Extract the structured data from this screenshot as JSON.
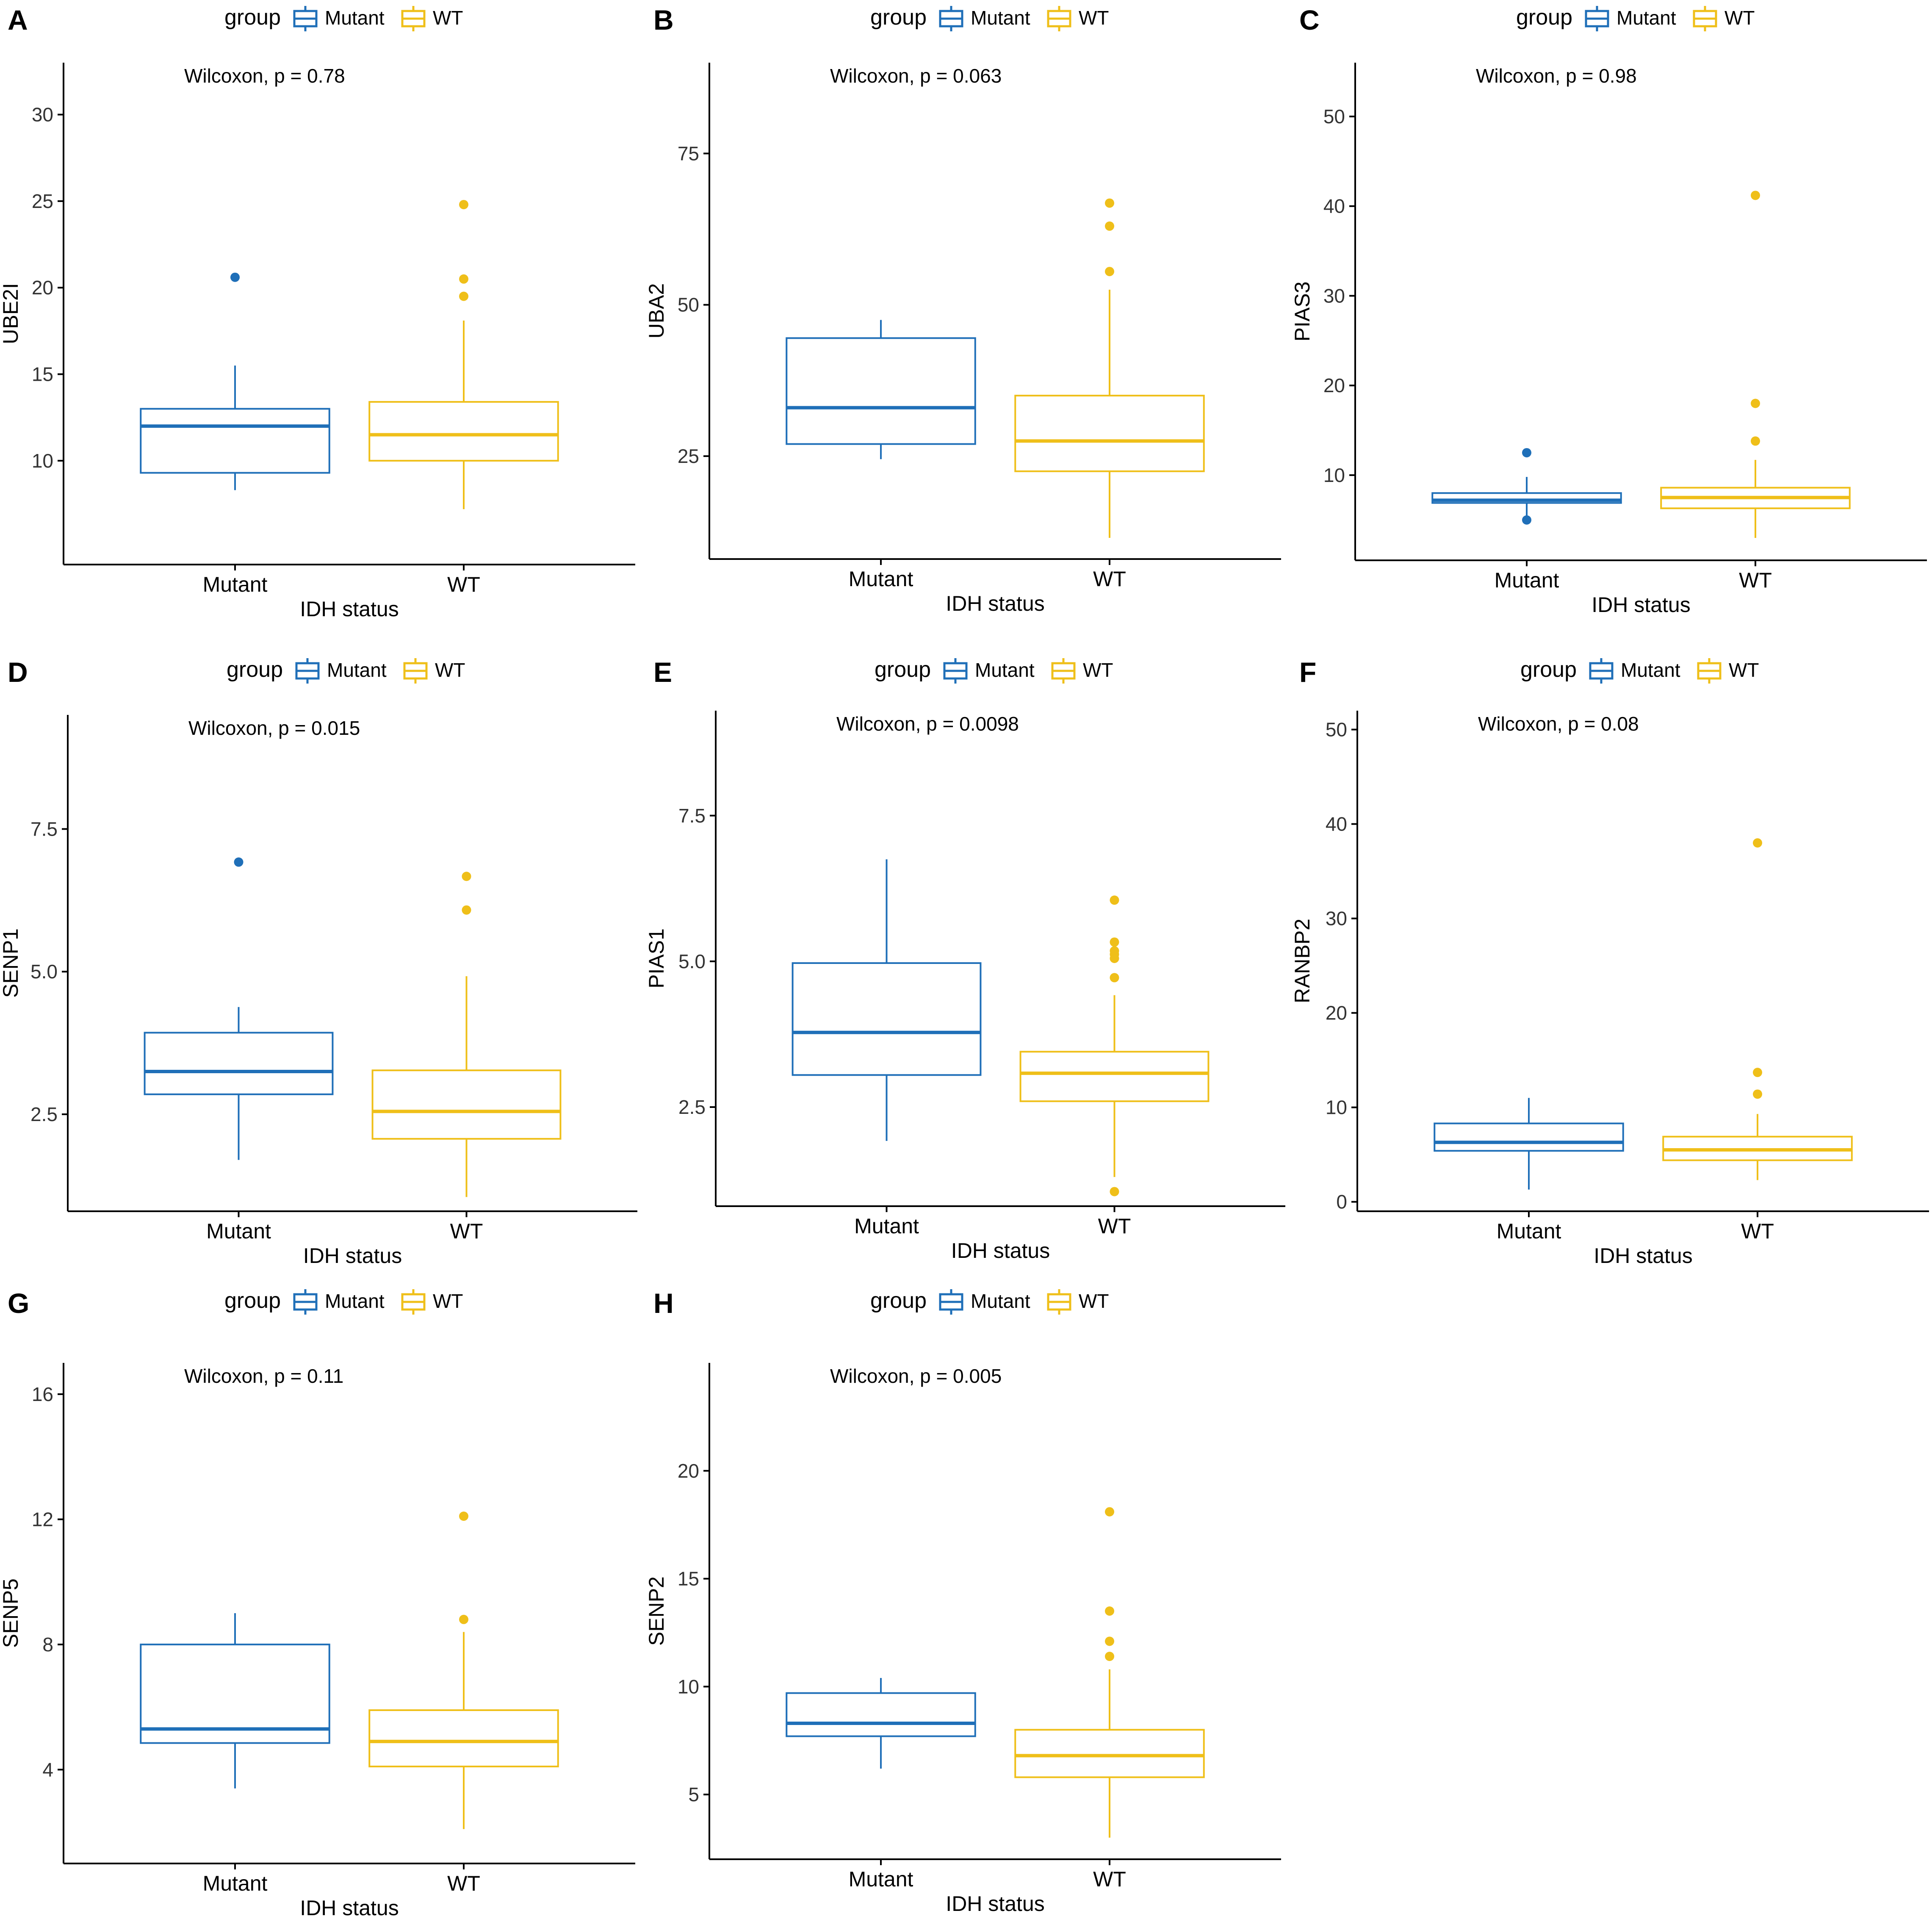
{
  "colors": {
    "mutant": "#1f6fb8",
    "wt": "#efbf19",
    "axis": "#000000",
    "text": "#000000"
  },
  "legend": {
    "title": "group",
    "mutant_label": "Mutant",
    "wt_label": "WT"
  },
  "chart_data": [
    {
      "panel": "A",
      "type": "box",
      "xlabel": "IDH status",
      "ylabel": "UBE2I",
      "annotation": "Wilcoxon, p = 0.78",
      "categories": [
        "Mutant",
        "WT"
      ],
      "ylim": [
        4,
        33
      ],
      "yticks": [
        10,
        15,
        20,
        25,
        30
      ],
      "ytick_labels": [
        "10",
        "15",
        "20",
        "25",
        "30"
      ],
      "boxes": [
        {
          "group": "Mutant",
          "whislo": 8.3,
          "q1": 9.3,
          "med": 12.0,
          "q3": 13.0,
          "whishi": 15.5,
          "outliers": [
            20.6
          ]
        },
        {
          "group": "WT",
          "whislo": 7.2,
          "q1": 10.0,
          "med": 11.5,
          "q3": 13.4,
          "whishi": 18.1,
          "outliers": [
            19.5,
            20.5,
            24.8
          ]
        }
      ]
    },
    {
      "panel": "B",
      "type": "box",
      "xlabel": "IDH status",
      "ylabel": "UBA2",
      "annotation": "Wilcoxon, p = 0.063",
      "categories": [
        "Mutant",
        "WT"
      ],
      "ylim": [
        8,
        90
      ],
      "yticks": [
        25,
        50,
        75
      ],
      "ytick_labels": [
        "25",
        "50",
        "75"
      ],
      "boxes": [
        {
          "group": "Mutant",
          "whislo": 24.5,
          "q1": 27.0,
          "med": 33.0,
          "q3": 44.5,
          "whishi": 47.5,
          "outliers": []
        },
        {
          "group": "WT",
          "whislo": 11.5,
          "q1": 22.5,
          "med": 27.5,
          "q3": 35.0,
          "whishi": 52.5,
          "outliers": [
            55.5,
            63.0,
            66.8
          ]
        }
      ]
    },
    {
      "panel": "C",
      "type": "box",
      "xlabel": "IDH status",
      "ylabel": "PIAS3",
      "annotation": "Wilcoxon, p = 0.98",
      "categories": [
        "Mutant",
        "WT"
      ],
      "ylim": [
        0.5,
        56
      ],
      "yticks": [
        10,
        20,
        30,
        40,
        50
      ],
      "ytick_labels": [
        "10",
        "20",
        "30",
        "40",
        "50"
      ],
      "boxes": [
        {
          "group": "Mutant",
          "whislo": 5.5,
          "q1": 6.9,
          "med": 7.2,
          "q3": 8.0,
          "whishi": 9.8,
          "outliers": [
            5.0,
            12.5
          ]
        },
        {
          "group": "WT",
          "whislo": 3.0,
          "q1": 6.3,
          "med": 7.5,
          "q3": 8.6,
          "whishi": 11.7,
          "outliers": [
            13.8,
            18.0,
            41.2
          ]
        }
      ]
    },
    {
      "panel": "D",
      "type": "box",
      "xlabel": "IDH status",
      "ylabel": "SENP1",
      "annotation": "Wilcoxon, p = 0.015",
      "categories": [
        "Mutant",
        "WT"
      ],
      "ylim": [
        0.8,
        9.5
      ],
      "yticks": [
        2.5,
        5.0,
        7.5
      ],
      "ytick_labels": [
        "2.5",
        "5.0",
        "7.5"
      ],
      "boxes": [
        {
          "group": "Mutant",
          "whislo": 1.7,
          "q1": 2.85,
          "med": 3.25,
          "q3": 3.93,
          "whishi": 4.38,
          "outliers": [
            6.92
          ]
        },
        {
          "group": "WT",
          "whislo": 1.05,
          "q1": 2.07,
          "med": 2.55,
          "q3": 3.27,
          "whishi": 4.92,
          "outliers": [
            6.08,
            6.67
          ]
        }
      ]
    },
    {
      "panel": "E",
      "type": "box",
      "xlabel": "IDH status",
      "ylabel": "PIAS1",
      "annotation": "Wilcoxon, p = 0.0098",
      "categories": [
        "Mutant",
        "WT"
      ],
      "ylim": [
        0.8,
        9.3
      ],
      "yticks": [
        2.5,
        5.0,
        7.5
      ],
      "ytick_labels": [
        "2.5",
        "5.0",
        "7.5"
      ],
      "boxes": [
        {
          "group": "Mutant",
          "whislo": 1.92,
          "q1": 3.05,
          "med": 3.78,
          "q3": 4.97,
          "whishi": 6.75,
          "outliers": []
        },
        {
          "group": "WT",
          "whislo": 1.3,
          "q1": 2.6,
          "med": 3.08,
          "q3": 3.45,
          "whishi": 4.42,
          "outliers": [
            1.05,
            4.72,
            5.05,
            5.12,
            5.18,
            5.33,
            6.05
          ]
        }
      ]
    },
    {
      "panel": "F",
      "type": "box",
      "xlabel": "IDH status",
      "ylabel": "RANBP2",
      "annotation": "Wilcoxon, p = 0.08",
      "categories": [
        "Mutant",
        "WT"
      ],
      "ylim": [
        -1,
        52
      ],
      "yticks": [
        0,
        10,
        20,
        30,
        40,
        50
      ],
      "ytick_labels": [
        "0",
        "10",
        "20",
        "30",
        "40",
        "50"
      ],
      "boxes": [
        {
          "group": "Mutant",
          "whislo": 1.3,
          "q1": 5.4,
          "med": 6.3,
          "q3": 8.3,
          "whishi": 11.0,
          "outliers": []
        },
        {
          "group": "WT",
          "whislo": 2.3,
          "q1": 4.4,
          "med": 5.5,
          "q3": 6.9,
          "whishi": 9.3,
          "outliers": [
            11.4,
            13.7,
            38.0
          ]
        }
      ]
    },
    {
      "panel": "G",
      "type": "box",
      "xlabel": "IDH status",
      "ylabel": "SENP5",
      "annotation": "Wilcoxon, p = 0.11",
      "categories": [
        "Mutant",
        "WT"
      ],
      "ylim": [
        1,
        17
      ],
      "yticks": [
        4,
        8,
        12,
        16
      ],
      "ytick_labels": [
        "4",
        "8",
        "12",
        "16"
      ],
      "boxes": [
        {
          "group": "Mutant",
          "whislo": 3.4,
          "q1": 4.85,
          "med": 5.3,
          "q3": 8.0,
          "whishi": 9.0,
          "outliers": []
        },
        {
          "group": "WT",
          "whislo": 2.1,
          "q1": 4.1,
          "med": 4.9,
          "q3": 5.9,
          "whishi": 8.4,
          "outliers": [
            8.8,
            12.1
          ]
        }
      ]
    },
    {
      "panel": "H",
      "type": "box",
      "xlabel": "IDH status",
      "ylabel": "SENP2",
      "annotation": "Wilcoxon, p = 0.005",
      "categories": [
        "Mutant",
        "WT"
      ],
      "ylim": [
        2,
        25
      ],
      "yticks": [
        5,
        10,
        15,
        20
      ],
      "ytick_labels": [
        "5",
        "10",
        "15",
        "20"
      ],
      "boxes": [
        {
          "group": "Mutant",
          "whislo": 6.2,
          "q1": 7.7,
          "med": 8.3,
          "q3": 9.7,
          "whishi": 10.4,
          "outliers": []
        },
        {
          "group": "WT",
          "whislo": 3.0,
          "q1": 5.8,
          "med": 6.8,
          "q3": 8.0,
          "whishi": 10.8,
          "outliers": [
            11.4,
            12.1,
            13.5,
            18.1
          ]
        }
      ]
    }
  ]
}
